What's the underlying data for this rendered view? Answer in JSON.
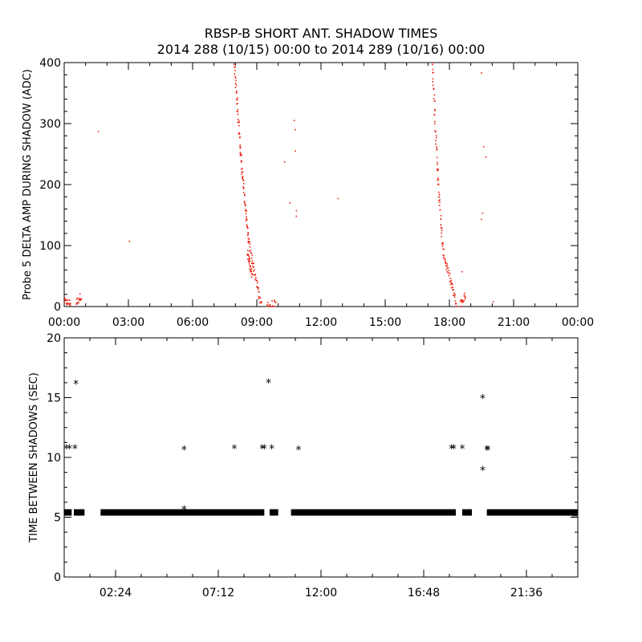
{
  "title": {
    "line1": "RBSP-B SHORT ANT. SHADOW TIMES",
    "line2": "2014 288 (10/15) 00:00 to 2014 289 (10/16) 00:00"
  },
  "colors": {
    "top_points": "#e8200f",
    "bottom_points": "#000000",
    "axes": "#000000"
  },
  "chart_data": [
    {
      "type": "scatter",
      "ylabel": "Probe 5 DELTA AMP DURING SHADOW (ADC)",
      "xlabel": "",
      "xlim": [
        0,
        24
      ],
      "ylim": [
        0,
        400
      ],
      "x_ticks": [
        0,
        3,
        6,
        9,
        12,
        15,
        18,
        21,
        24
      ],
      "x_tick_labels": [
        "00:00",
        "03:00",
        "06:00",
        "09:00",
        "12:00",
        "15:00",
        "18:00",
        "21:00",
        "00:00"
      ],
      "y_ticks": [
        0,
        100,
        200,
        300,
        400
      ],
      "y_tick_labels": [
        "0",
        "100",
        "200",
        "300",
        "400"
      ],
      "marker_color": "#e8200f",
      "series": [
        {
          "segments": [
            {
              "x0": 0.0,
              "y0": 8,
              "x1": 0.3,
              "y1": 5,
              "n": 18
            },
            {
              "x0": 0.55,
              "y0": 6,
              "x1": 0.8,
              "y1": 18,
              "n": 14
            },
            {
              "x0": 7.95,
              "y0": 400,
              "x1": 8.25,
              "y1": 250,
              "n": 40
            },
            {
              "x0": 8.25,
              "y0": 250,
              "x1": 8.6,
              "y1": 110,
              "n": 45
            },
            {
              "x0": 8.6,
              "y0": 110,
              "x1": 9.2,
              "y1": 2,
              "n": 45
            },
            {
              "x0": 8.55,
              "y0": 90,
              "x1": 8.8,
              "y1": 50,
              "n": 30
            },
            {
              "x0": 9.5,
              "y0": 3,
              "x1": 9.9,
              "y1": 5,
              "n": 14
            },
            {
              "x0": 17.2,
              "y0": 400,
              "x1": 17.45,
              "y1": 220,
              "n": 35
            },
            {
              "x0": 17.45,
              "y0": 220,
              "x1": 17.7,
              "y1": 90,
              "n": 35
            },
            {
              "x0": 17.7,
              "y0": 90,
              "x1": 18.35,
              "y1": 0,
              "n": 45
            },
            {
              "x0": 18.5,
              "y0": 5,
              "x1": 18.75,
              "y1": 18,
              "n": 14
            }
          ],
          "points": [
            [
              1.6,
              287
            ],
            [
              3.05,
              107
            ],
            [
              10.3,
              237
            ],
            [
              10.75,
              305
            ],
            [
              10.8,
              290
            ],
            [
              10.8,
              255
            ],
            [
              10.85,
              148
            ],
            [
              10.85,
              157
            ],
            [
              10.55,
              170
            ],
            [
              12.8,
              177
            ],
            [
              19.5,
              383
            ],
            [
              19.6,
              262
            ],
            [
              19.7,
              245
            ],
            [
              19.5,
              143
            ],
            [
              19.55,
              153
            ],
            [
              20.05,
              8
            ],
            [
              18.6,
              57
            ]
          ]
        }
      ]
    },
    {
      "type": "scatter",
      "ylabel": "TIME BETWEEN SHADOWS (SEC)",
      "xlabel": "",
      "xlim": [
        0,
        24
      ],
      "ylim": [
        0,
        20
      ],
      "x_ticks": [
        2.4,
        7.2,
        12.0,
        16.8,
        21.6
      ],
      "x_tick_labels": [
        "02:24",
        "07:12",
        "12:00",
        "16:48",
        "21:36"
      ],
      "y_ticks": [
        0,
        5,
        10,
        15,
        20
      ],
      "y_tick_labels": [
        "0",
        "5",
        "10",
        "15",
        "20"
      ],
      "marker": "*",
      "marker_color": "#000000",
      "series": [
        {
          "baseline_y": 5.4,
          "baseline_ranges": [
            [
              0.0,
              0.35
            ],
            [
              0.45,
              0.95
            ],
            [
              1.7,
              9.35
            ],
            [
              9.6,
              10.0
            ],
            [
              10.6,
              18.3
            ],
            [
              18.6,
              19.05
            ],
            [
              19.75,
              24.0
            ]
          ],
          "points": [
            [
              0.1,
              10.8
            ],
            [
              0.25,
              10.8
            ],
            [
              0.55,
              16.2
            ],
            [
              0.5,
              10.8
            ],
            [
              5.6,
              10.7
            ],
            [
              5.6,
              5.7
            ],
            [
              7.95,
              10.8
            ],
            [
              9.25,
              10.8
            ],
            [
              9.35,
              10.8
            ],
            [
              9.55,
              16.3
            ],
            [
              9.7,
              10.8
            ],
            [
              10.95,
              10.7
            ],
            [
              18.1,
              10.8
            ],
            [
              18.2,
              10.8
            ],
            [
              18.6,
              10.8
            ],
            [
              19.55,
              15.0
            ],
            [
              19.55,
              9.0
            ],
            [
              19.75,
              10.7
            ],
            [
              19.8,
              10.7
            ],
            [
              23.85,
              5.1
            ]
          ]
        }
      ]
    }
  ]
}
